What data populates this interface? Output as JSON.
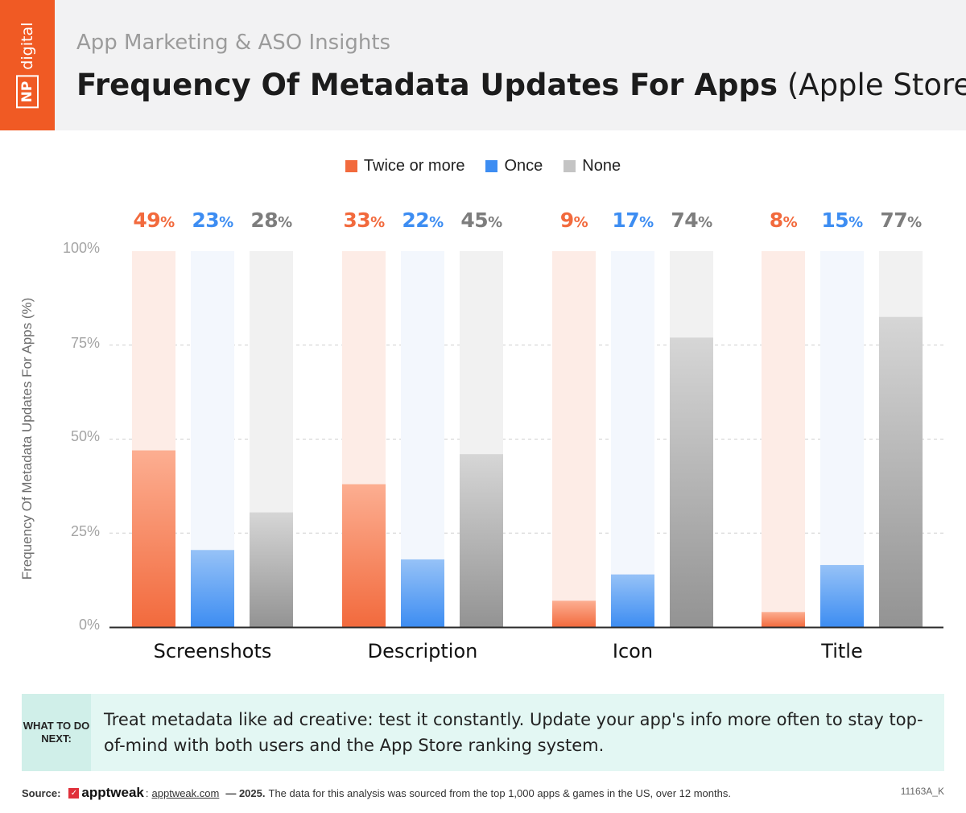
{
  "header": {
    "logo_np": "NP",
    "logo_digital": "digital",
    "subtitle": "App Marketing & ASO Insights",
    "title_bold": "Frequency Of Metadata Updates For Apps",
    "title_light": "(Apple Store)"
  },
  "colors": {
    "twice": "#f26a3d",
    "once": "#3d8df2",
    "none": "#7d7d7d",
    "header_bg": "#f2f2f3",
    "accent": "#f05a24"
  },
  "chart_data": {
    "type": "bar",
    "title": "Frequency Of Metadata Updates For Apps (Apple Store)",
    "ylabel": "Frequency Of Metadata Updates For Apps (%)",
    "xlabel": "",
    "ylim": [
      0,
      100
    ],
    "yticks": [
      "100%",
      "75%",
      "50%",
      "25%",
      "0%"
    ],
    "categories": [
      "Screenshots",
      "Description",
      "Icon",
      "Title"
    ],
    "series": [
      {
        "name": "Twice or more",
        "values": [
          49,
          33,
          9,
          8
        ],
        "bar_values": [
          47,
          38,
          7,
          4
        ]
      },
      {
        "name": "Once",
        "values": [
          23,
          22,
          17,
          15
        ],
        "bar_values": [
          20.5,
          18,
          14,
          16.5
        ]
      },
      {
        "name": "None",
        "values": [
          28,
          45,
          74,
          77
        ],
        "bar_values": [
          30.5,
          46,
          77,
          82.5
        ]
      }
    ],
    "legend_position": "top-center",
    "grid": true
  },
  "callout": {
    "tag": "WHAT TO DO NEXT:",
    "text": "Treat metadata like ad creative: test it constantly. Update your app's info more often to stay top-of-mind with both users and the App Store ranking system."
  },
  "footer": {
    "source_label": "Source:",
    "brand": "apptweak",
    "link": "apptweak.com",
    "year": "— 2025.",
    "note": "The data for this analysis was sourced from the top 1,000 apps & games in the US, over 12 months.",
    "code": "11163A_K"
  }
}
